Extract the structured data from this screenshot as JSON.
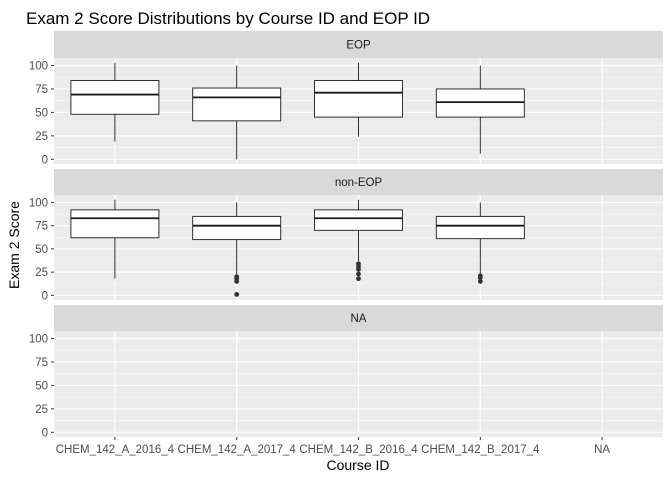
{
  "chart_data": {
    "type": "boxplot",
    "title": "Exam 2 Score Distributions by Course ID and EOP ID",
    "xlabel": "Course ID",
    "ylabel": "Exam 2 Score",
    "categories": [
      "CHEM_142_A_2016_4",
      "CHEM_142_A_2017_4",
      "CHEM_142_B_2016_4",
      "CHEM_142_B_2017_4",
      "NA"
    ],
    "ylim": [
      -5,
      108
    ],
    "yticks": [
      0,
      25,
      50,
      75,
      100
    ],
    "grid": true,
    "facets": [
      {
        "label": "EOP",
        "boxes": [
          {
            "category": "CHEM_142_A_2016_4",
            "min": 19,
            "q1": 48,
            "median": 69,
            "q3": 84,
            "max": 103,
            "outliers": []
          },
          {
            "category": "CHEM_142_A_2017_4",
            "min": 0,
            "q1": 41,
            "median": 66,
            "q3": 76,
            "max": 100,
            "outliers": []
          },
          {
            "category": "CHEM_142_B_2016_4",
            "min": 24,
            "q1": 45,
            "median": 71,
            "q3": 84,
            "max": 103,
            "outliers": []
          },
          {
            "category": "CHEM_142_B_2017_4",
            "min": 6,
            "q1": 45,
            "median": 61,
            "q3": 75,
            "max": 100,
            "outliers": []
          }
        ]
      },
      {
        "label": "non-EOP",
        "boxes": [
          {
            "category": "CHEM_142_A_2016_4",
            "min": 18,
            "q1": 62,
            "median": 83,
            "q3": 92,
            "max": 103,
            "outliers": []
          },
          {
            "category": "CHEM_142_A_2017_4",
            "min": 22,
            "q1": 60,
            "median": 75,
            "q3": 85,
            "max": 100,
            "outliers": [
              20,
              18,
              15,
              1
            ]
          },
          {
            "category": "CHEM_142_B_2016_4",
            "min": 37,
            "q1": 70,
            "median": 83,
            "q3": 92,
            "max": 103,
            "outliers": [
              34,
              31,
              28,
              23,
              18
            ]
          },
          {
            "category": "CHEM_142_B_2017_4",
            "min": 23,
            "q1": 61,
            "median": 75,
            "q3": 85,
            "max": 100,
            "outliers": [
              21,
              19,
              15
            ]
          }
        ]
      },
      {
        "label": "NA",
        "boxes": []
      }
    ]
  },
  "colors": {
    "panel_bg": "#ebebeb",
    "strip_bg": "#d9d9d9",
    "grid_major": "#ffffff",
    "box_fill": "#ffffff",
    "box_stroke": "#1a1a1a",
    "outlier": "#333333"
  }
}
